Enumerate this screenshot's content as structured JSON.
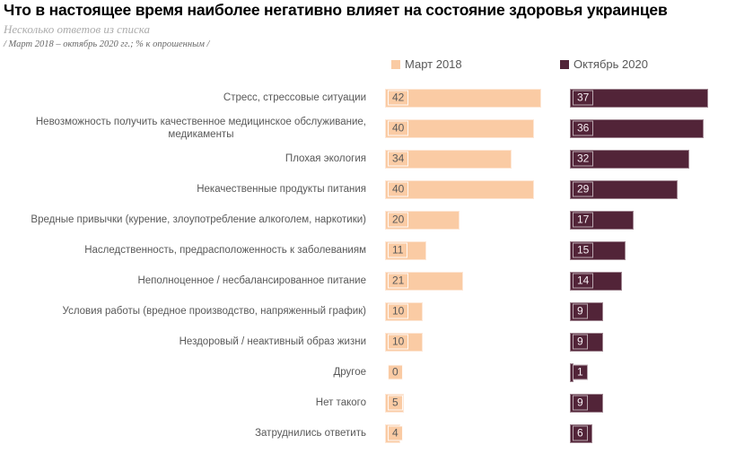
{
  "header": {
    "title": "Что в настоящее время наиболее негативно влияет на состояние здоровья украинцев",
    "subtitle": "Несколько ответов из списка",
    "period_note": "/ Март 2018 – октябрь 2020 гг.; % к опрошенным /"
  },
  "legend": [
    {
      "label": "Март 2018",
      "color": "#facba4"
    },
    {
      "label": "Октябрь 2020",
      "color": "#522438"
    }
  ],
  "colors": {
    "march_2018": "#facba4",
    "october_2020": "#522438",
    "label_text": "#595959",
    "march_value_text": "#595959",
    "october_value_text": "#f6eef3",
    "background": "#ffffff"
  },
  "chart_data": {
    "type": "bar",
    "orientation": "horizontal",
    "title": "Что в настоящее время наиболее негативно влияет на состояние здоровья украинцев",
    "subtitle": "Несколько ответов из списка",
    "period_note": "/ Март 2018 – октябрь 2020 гг.; % к опрошенным /",
    "unit": "% к опрошенным",
    "legend_position": "top",
    "grid": false,
    "xlim": [
      0,
      45
    ],
    "value_labels": "inside-start-boxed",
    "categories": [
      "Стресс, стрессовые ситуации",
      "Невозможность получить качественное медицинское обслуживание,\nмедикаменты",
      "Плохая экология",
      "Некачественные продукты питания",
      "Вредные привычки (курение, злоупотребление алкоголем, наркотики)",
      "Наследственность, предрасположенность к заболеваниям",
      "Неполноценное / несбалансированное питание",
      "Условия работы (вредное производство, напряженный график)",
      "Нездоровый / неактивный образ жизни",
      "Другое",
      "Нет такого",
      "Затруднились ответить"
    ],
    "series": [
      {
        "name": "Март 2018",
        "color": "#facba4",
        "values": [
          42,
          40,
          34,
          40,
          20,
          11,
          21,
          10,
          10,
          0,
          5,
          4
        ]
      },
      {
        "name": "Октябрь 2020",
        "color": "#522438",
        "values": [
          37,
          36,
          32,
          29,
          17,
          15,
          14,
          9,
          9,
          1,
          9,
          6
        ]
      }
    ]
  }
}
